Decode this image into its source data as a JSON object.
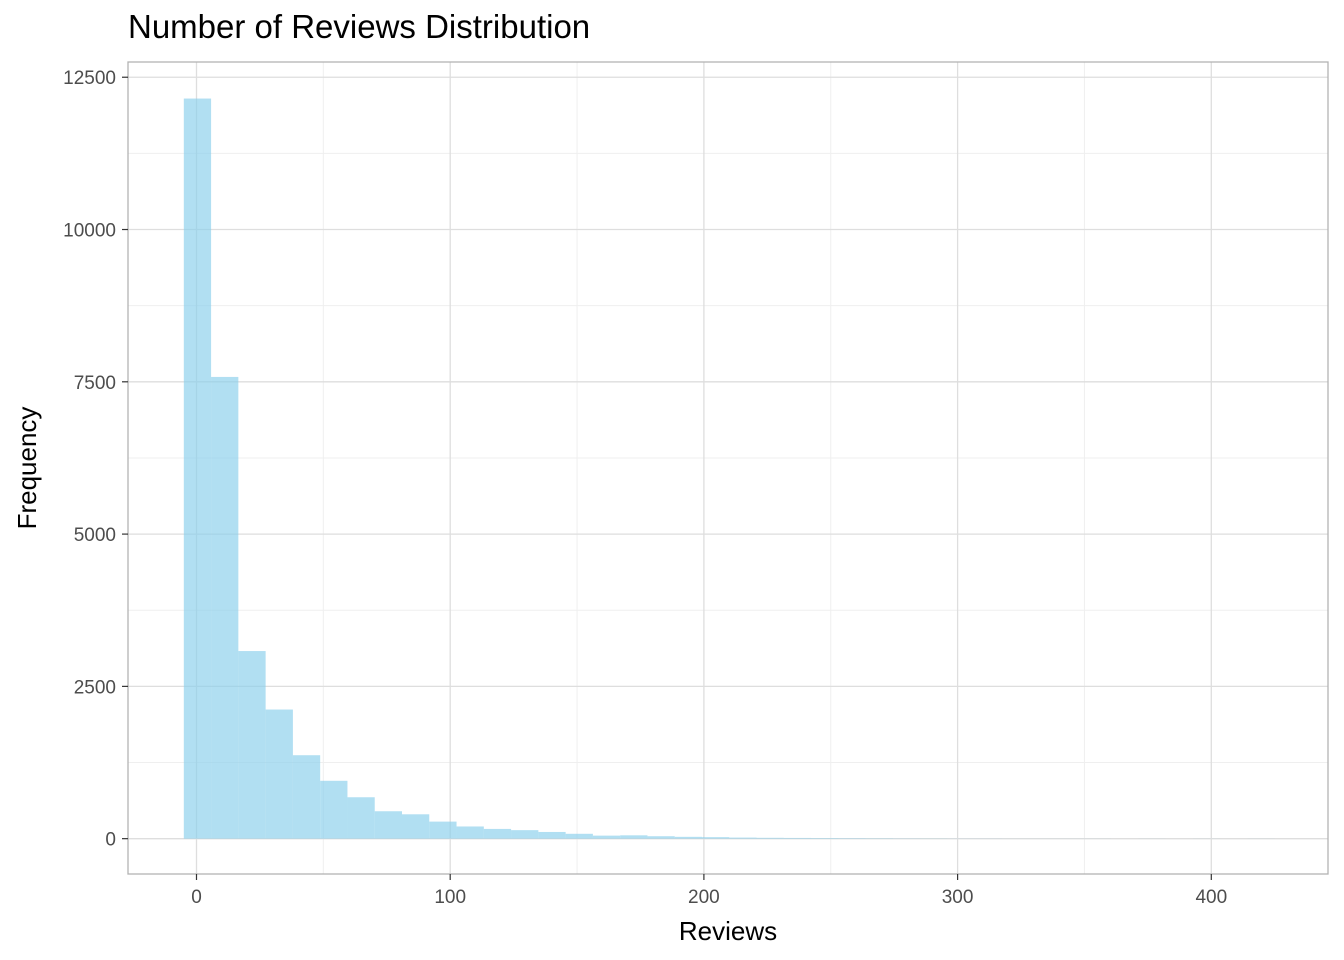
{
  "chart_data": {
    "type": "bar",
    "title": "Number of Reviews Distribution",
    "xlabel": "Reviews",
    "ylabel": "Frequency",
    "xlim": [
      -27,
      446
    ],
    "ylim": [
      -580,
      12750
    ],
    "x_ticks": [
      0,
      100,
      200,
      300,
      400
    ],
    "y_ticks": [
      0,
      2500,
      5000,
      7500,
      10000,
      12500
    ],
    "x_tick_labels": [
      "0",
      "100",
      "200",
      "300",
      "400"
    ],
    "y_tick_labels": [
      "0",
      "2500",
      "5000",
      "7500",
      "10000",
      "12500"
    ],
    "x_minor_ticks": [
      50,
      150,
      250,
      350
    ],
    "y_minor_ticks": [
      1250,
      3750,
      6250,
      8750,
      11250
    ],
    "grid": true,
    "bin_width": 10.75,
    "bins": [
      {
        "x0": -5,
        "x1": 5.75,
        "count": 12150
      },
      {
        "x0": 5.75,
        "x1": 16.5,
        "count": 7580
      },
      {
        "x0": 16.5,
        "x1": 27.25,
        "count": 3080
      },
      {
        "x0": 27.25,
        "x1": 38,
        "count": 2120
      },
      {
        "x0": 38,
        "x1": 48.75,
        "count": 1370
      },
      {
        "x0": 48.75,
        "x1": 59.5,
        "count": 950
      },
      {
        "x0": 59.5,
        "x1": 70.25,
        "count": 680
      },
      {
        "x0": 70.25,
        "x1": 81,
        "count": 450
      },
      {
        "x0": 81,
        "x1": 91.75,
        "count": 400
      },
      {
        "x0": 91.75,
        "x1": 102.5,
        "count": 280
      },
      {
        "x0": 102.5,
        "x1": 113.25,
        "count": 200
      },
      {
        "x0": 113.25,
        "x1": 124,
        "count": 160
      },
      {
        "x0": 124,
        "x1": 134.75,
        "count": 140
      },
      {
        "x0": 134.75,
        "x1": 145.5,
        "count": 110
      },
      {
        "x0": 145.5,
        "x1": 156.25,
        "count": 80
      },
      {
        "x0": 156.25,
        "x1": 167,
        "count": 50
      },
      {
        "x0": 167,
        "x1": 177.75,
        "count": 55
      },
      {
        "x0": 177.75,
        "x1": 188.5,
        "count": 40
      },
      {
        "x0": 188.5,
        "x1": 199.25,
        "count": 30
      },
      {
        "x0": 199.25,
        "x1": 210,
        "count": 25
      },
      {
        "x0": 210,
        "x1": 220.75,
        "count": 18
      },
      {
        "x0": 220.75,
        "x1": 231.5,
        "count": 14
      },
      {
        "x0": 231.5,
        "x1": 242.25,
        "count": 12
      },
      {
        "x0": 242.25,
        "x1": 253,
        "count": 10
      },
      {
        "x0": 253,
        "x1": 263.75,
        "count": 8
      },
      {
        "x0": 263.75,
        "x1": 274.5,
        "count": 6
      },
      {
        "x0": 274.5,
        "x1": 285.25,
        "count": 4
      },
      {
        "x0": 285.25,
        "x1": 296,
        "count": 3
      },
      {
        "x0": 296,
        "x1": 306.75,
        "count": 2
      },
      {
        "x0": 306.75,
        "x1": 317.5,
        "count": 2
      },
      {
        "x0": 317.5,
        "x1": 328.25,
        "count": 1
      },
      {
        "x0": 328.25,
        "x1": 339,
        "count": 1
      },
      {
        "x0": 339,
        "x1": 349.75,
        "count": 1
      },
      {
        "x0": 349.75,
        "x1": 360.5,
        "count": 1
      },
      {
        "x0": 360.5,
        "x1": 371.25,
        "count": 0
      },
      {
        "x0": 371.25,
        "x1": 382,
        "count": 1
      },
      {
        "x0": 382,
        "x1": 392.75,
        "count": 0
      },
      {
        "x0": 392.75,
        "x1": 403.5,
        "count": 1
      },
      {
        "x0": 403.5,
        "x1": 414.25,
        "count": 0
      },
      {
        "x0": 414.25,
        "x1": 425,
        "count": 1
      }
    ],
    "colors": {
      "bar_fill": "#87ceeb",
      "bar_opacity": 0.65,
      "panel_border": "#b3b3b3",
      "grid_major": "#dedede",
      "grid_minor": "#efefef",
      "tick_text": "#4d4d4d"
    }
  }
}
